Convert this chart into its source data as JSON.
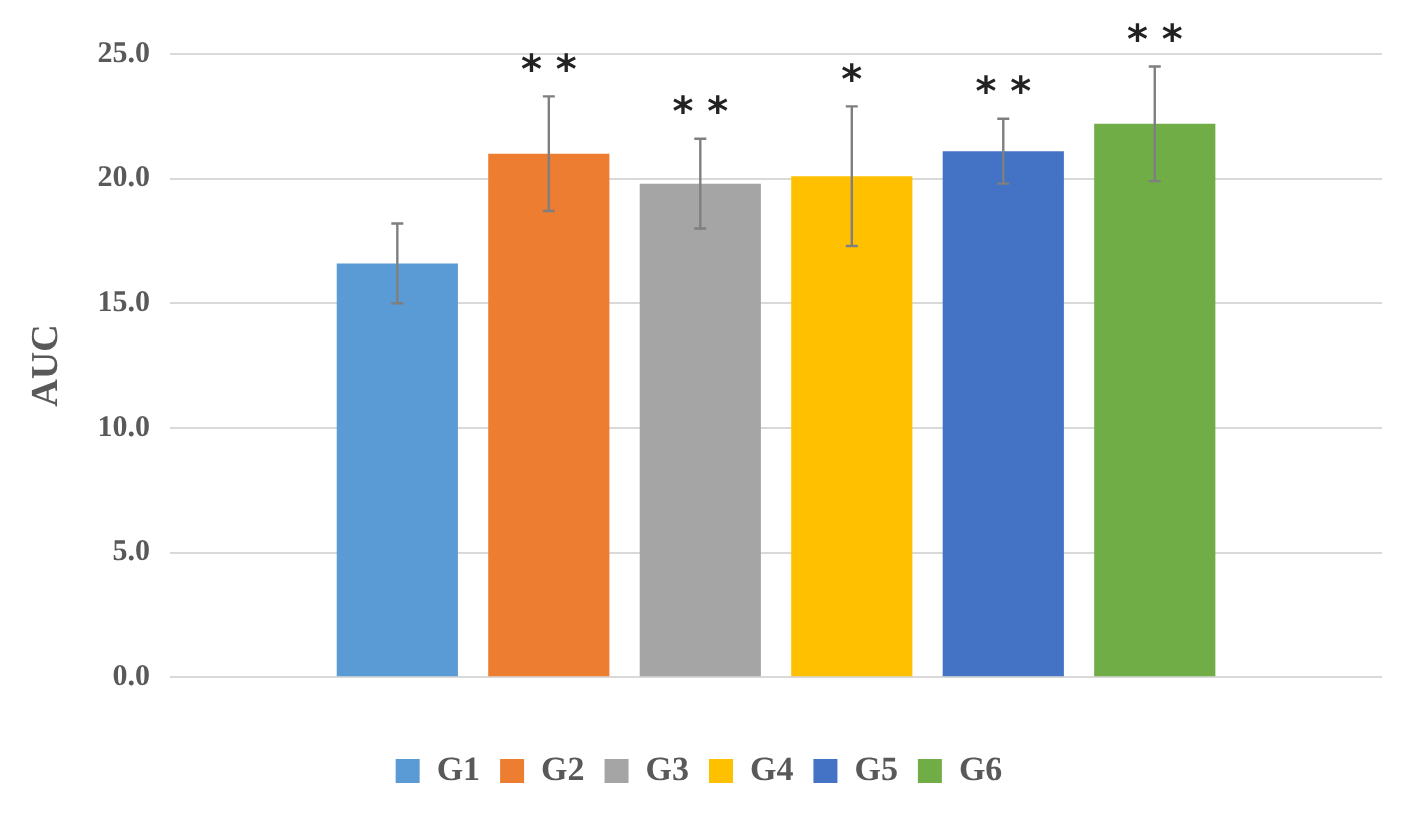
{
  "chart_data": {
    "type": "bar",
    "ylabel": "AUC",
    "categories": [
      null
    ],
    "series": [
      {
        "name": "G1",
        "color": "#5b9bd5",
        "values": [
          16.6
        ],
        "errors": [
          [
            15.0,
            18.2
          ]
        ]
      },
      {
        "name": "G2",
        "color": "#ed7d31",
        "values": [
          21.0
        ],
        "errors": [
          [
            18.7,
            23.3
          ]
        ]
      },
      {
        "name": "G3",
        "color": "#a5a5a5",
        "values": [
          19.8
        ],
        "errors": [
          [
            18.0,
            21.6
          ]
        ]
      },
      {
        "name": "G4",
        "color": "#ffc000",
        "values": [
          20.1
        ],
        "errors": [
          [
            17.3,
            22.9
          ]
        ]
      },
      {
        "name": "G5",
        "color": "#4472c4",
        "values": [
          21.1
        ],
        "errors": [
          [
            19.8,
            22.4
          ]
        ]
      },
      {
        "name": "G6",
        "color": "#70ad47",
        "values": [
          22.2
        ],
        "errors": [
          [
            19.9,
            24.5
          ]
        ]
      }
    ],
    "annotations": [
      "* *",
      "* *",
      "*",
      "* *",
      "* *"
    ],
    "ylim": [
      0,
      25
    ],
    "yticks": [
      {
        "value": 0,
        "label": "0.0"
      },
      {
        "value": 5,
        "label": "5.0"
      },
      {
        "value": 10,
        "label": "10.0"
      },
      {
        "value": 15,
        "label": "15.0"
      },
      {
        "value": 20,
        "label": "20.0"
      },
      {
        "value": 25,
        "label": "25.0"
      }
    ],
    "grid": "y",
    "legend": "bottom"
  }
}
